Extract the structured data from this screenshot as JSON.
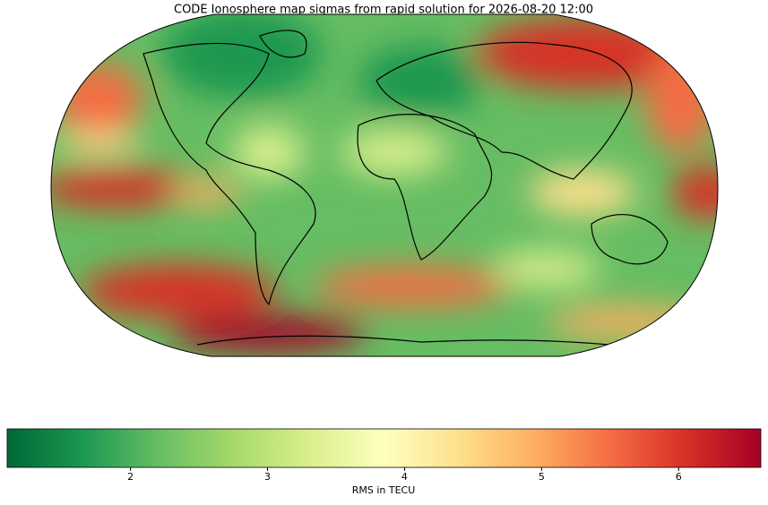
{
  "title": "CODE Ionosphere map sigmas from rapid solution for 2026-08-20 12:00",
  "colorbar": {
    "label": "RMS in TECU",
    "range": [
      1.1,
      6.6
    ],
    "ticks": [
      2,
      3,
      4,
      5,
      6
    ],
    "colormap": [
      "#006837",
      "#1a9850",
      "#66bd63",
      "#a6d96a",
      "#d9ef8b",
      "#ffffbf",
      "#fee08b",
      "#fdae61",
      "#f46d43",
      "#d73027",
      "#a50026"
    ]
  }
}
